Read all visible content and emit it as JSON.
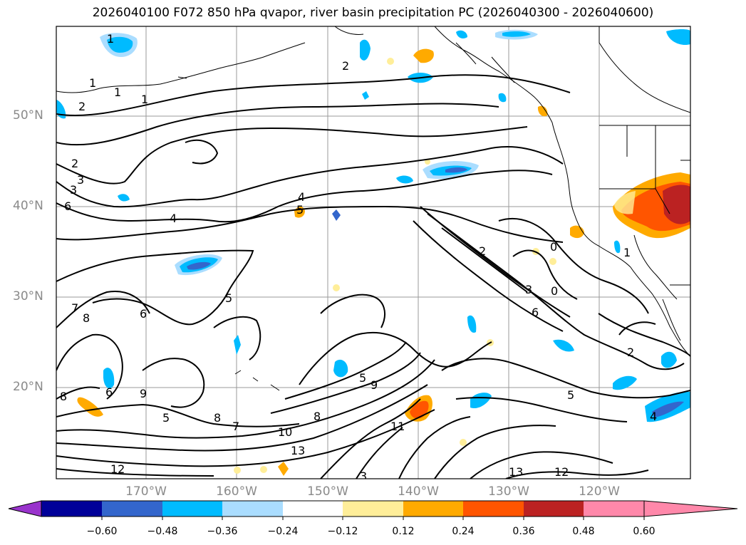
{
  "title": "2026040100 F072 850 hPa qvapor, river basin precipitation PC (2026040300 - 2026040600)",
  "map": {
    "lat_labels": [
      "50°N",
      "40°N",
      "30°N",
      "20°N"
    ],
    "lon_labels": [
      "170°W",
      "160°W",
      "150°W",
      "140°W",
      "130°W",
      "120°W"
    ],
    "contour_labels": [
      "1",
      "1",
      "1",
      "1",
      "2",
      "2",
      "2",
      "3",
      "3",
      "4",
      "4",
      "5",
      "5",
      "5",
      "5",
      "6",
      "6",
      "6",
      "6",
      "7",
      "7",
      "8",
      "8",
      "8",
      "8",
      "9",
      "9",
      "10",
      "11",
      "12",
      "12",
      "13",
      "13",
      "0",
      "0",
      "1",
      "2",
      "2",
      "3",
      "3",
      "4",
      "5"
    ]
  },
  "colorbar": {
    "ticks": [
      "−0.60",
      "−0.48",
      "−0.36",
      "−0.24",
      "−0.12",
      "0.12",
      "0.24",
      "0.36",
      "0.48",
      "0.60"
    ],
    "colors": [
      "#9933cc",
      "#000099",
      "#3366cc",
      "#00bbff",
      "#aaddff",
      "#ffffff",
      "#ffee99",
      "#ffaa00",
      "#ff5500",
      "#bb2222",
      "#ff88aa"
    ]
  }
}
